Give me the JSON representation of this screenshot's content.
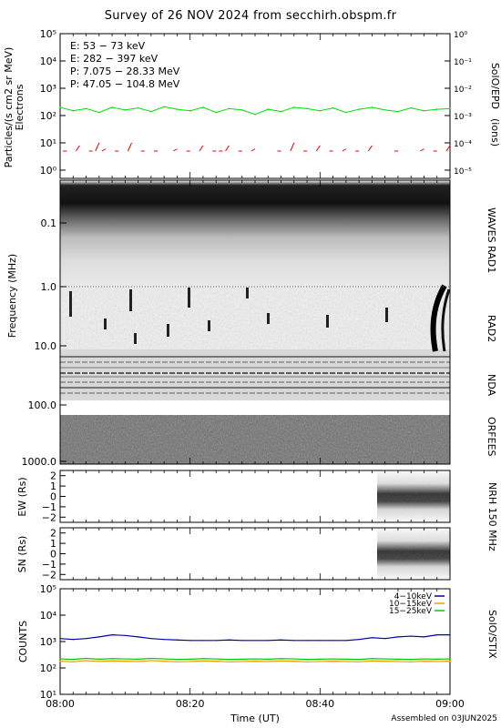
{
  "title": "Survey of 26 NOV 2024 from secchirh.obspm.fr",
  "footer": {
    "xlabel": "Time (UT)",
    "assembled": "Assembled on 03JUN2025",
    "xticks": [
      "08:00",
      "08:20",
      "08:40",
      "09:00"
    ]
  },
  "panels": {
    "epd": {
      "ylabel_left_1": "Particles/(s cm2 sr MeV)",
      "ylabel_left_2": "Electrons",
      "ylabel_right_1": "SolO/EPD",
      "ylabel_right_2": "(ions)",
      "yticks_left": [
        "10⁰",
        "10¹",
        "10²",
        "10³",
        "10⁴",
        "10⁵"
      ],
      "yticks_right": [
        "10⁻⁵",
        "10⁻⁴",
        "10⁻³",
        "10⁻²",
        "10⁻¹",
        "10⁰"
      ],
      "legend": [
        {
          "label": "E: 53 − 73 keV",
          "color": "#00dd00"
        },
        {
          "label": "E: 282 − 397 keV",
          "color": "#dd0000"
        },
        {
          "label": "P: 7.075 − 28.33 MeV",
          "color": "#000000"
        },
        {
          "label": "P: 47.05 − 104.8 MeV",
          "color": "#0000cc"
        }
      ]
    },
    "spectrogram": {
      "ylabel": "Frequency (MHz)",
      "yticks": [
        "0.1",
        "1.0",
        "10.0",
        "100.0",
        "1000.0"
      ],
      "right_labels": [
        "WAVES RAD1",
        "RAD2",
        "NDA",
        "ORFEES"
      ]
    },
    "nrh": {
      "right_label": "NRH 150 MHz",
      "ew_label": "EW (Rs)",
      "sn_label": "SN (Rs)",
      "yticks": [
        "2",
        "1",
        "0",
        "−1",
        "−2"
      ]
    },
    "stix": {
      "ylabel": "COUNTS",
      "right_label": "SolO/STIX",
      "yticks": [
        "10¹",
        "10²",
        "10³",
        "10⁴",
        "10⁵"
      ],
      "legend": [
        {
          "label": "4−10keV",
          "color": "#0000aa"
        },
        {
          "label": "10−15keV",
          "color": "#ff9900"
        },
        {
          "label": "15−25keV",
          "color": "#00cc00"
        }
      ]
    }
  },
  "chart_data": [
    {
      "type": "line",
      "panel": "SolO/EPD",
      "x_range": [
        "08:00",
        "09:00"
      ],
      "yscale": "log",
      "ylim": [
        0.5,
        100000
      ],
      "series": [
        {
          "name": "E: 53 − 73 keV",
          "color": "#00dd00",
          "x": [
            0,
            2,
            4,
            6,
            8,
            10,
            12,
            14,
            16,
            18,
            20,
            22,
            24,
            26,
            28,
            30,
            32,
            34,
            36,
            38,
            40,
            42,
            44,
            46,
            48,
            50,
            52,
            54,
            56,
            58,
            60
          ],
          "values": [
            200,
            150,
            180,
            130,
            200,
            160,
            190,
            140,
            210,
            170,
            150,
            200,
            130,
            180,
            160,
            110,
            170,
            140,
            200,
            180,
            150,
            190,
            130,
            170,
            200,
            160,
            140,
            190,
            150,
            170,
            180
          ]
        },
        {
          "name": "E: 282 − 397 keV",
          "color": "#dd0000",
          "x": [
            1,
            3,
            5,
            6,
            7,
            9,
            11,
            13,
            15,
            18,
            20,
            22,
            24,
            25,
            26,
            28,
            30,
            34,
            36,
            38,
            40,
            42,
            44,
            46,
            48,
            52,
            56,
            58,
            60
          ],
          "values": [
            5,
            8,
            5,
            10,
            6,
            5,
            10,
            5,
            5,
            6,
            5,
            8,
            5,
            5,
            8,
            5,
            6,
            5,
            10,
            5,
            8,
            5,
            6,
            5,
            8,
            5,
            6,
            5,
            8
          ]
        }
      ]
    },
    {
      "type": "heatmap",
      "panel": "WAVES RAD1 / RAD2 / NDA / ORFEES",
      "x_range": [
        "08:00",
        "09:00"
      ],
      "yscale": "log",
      "ylim": [
        0.02,
        1300
      ],
      "y_inverted": true,
      "notes": "dynamic spectrum"
    },
    {
      "type": "heatmap",
      "panel": "NRH 150 MHz",
      "x_range": [
        "08:00",
        "09:00"
      ],
      "sub": [
        "EW (Rs)",
        "SN (Rs)"
      ],
      "ylim": [
        -2.5,
        2.5
      ],
      "data_window": [
        "08:51",
        "09:00"
      ]
    },
    {
      "type": "line",
      "panel": "SolO/STIX",
      "x_range": [
        "08:00",
        "09:00"
      ],
      "yscale": "log",
      "ylim": [
        10,
        100000
      ],
      "ylabel": "COUNTS",
      "series": [
        {
          "name": "4−10keV",
          "color": "#0000aa",
          "x": [
            0,
            2,
            4,
            6,
            8,
            10,
            12,
            14,
            16,
            18,
            20,
            22,
            24,
            26,
            28,
            30,
            32,
            34,
            36,
            38,
            40,
            42,
            44,
            46,
            48,
            50,
            52,
            54,
            56,
            58,
            60
          ],
          "values": [
            1300,
            1200,
            1300,
            1500,
            1800,
            1700,
            1500,
            1300,
            1200,
            1150,
            1100,
            1100,
            1100,
            1150,
            1100,
            1100,
            1100,
            1150,
            1100,
            1100,
            1100,
            1100,
            1100,
            1200,
            1400,
            1300,
            1500,
            1600,
            1500,
            1800,
            1800
          ]
        },
        {
          "name": "10−15keV",
          "color": "#ff9900",
          "x": [
            0,
            2,
            4,
            6,
            8,
            10,
            12,
            14,
            16,
            18,
            20,
            22,
            24,
            26,
            28,
            30,
            32,
            34,
            36,
            38,
            40,
            42,
            44,
            46,
            48,
            50,
            52,
            54,
            56,
            58,
            60
          ],
          "values": [
            180,
            170,
            190,
            175,
            185,
            180,
            175,
            190,
            180,
            170,
            175,
            185,
            180,
            170,
            175,
            180,
            175,
            185,
            180,
            170,
            175,
            180,
            175,
            170,
            185,
            180,
            175,
            170,
            180,
            175,
            180
          ]
        },
        {
          "name": "15−25keV",
          "color": "#00cc00",
          "x": [
            0,
            2,
            4,
            6,
            8,
            10,
            12,
            14,
            16,
            18,
            20,
            22,
            24,
            26,
            28,
            30,
            32,
            34,
            36,
            38,
            40,
            42,
            44,
            46,
            48,
            50,
            52,
            54,
            56,
            58,
            60
          ],
          "values": [
            220,
            210,
            230,
            215,
            225,
            220,
            215,
            230,
            220,
            210,
            215,
            225,
            220,
            210,
            215,
            220,
            215,
            225,
            220,
            210,
            215,
            220,
            215,
            210,
            225,
            220,
            215,
            210,
            220,
            215,
            220
          ]
        }
      ]
    }
  ]
}
